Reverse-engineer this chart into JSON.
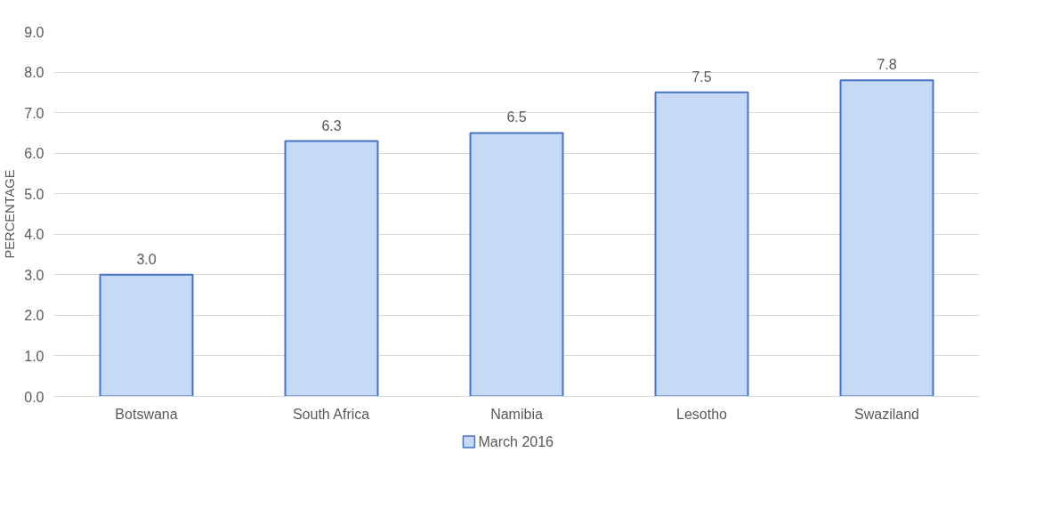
{
  "chart_data": {
    "type": "bar",
    "ylabel": "PERCENTAGE",
    "categories": [
      "Botswana",
      "South Africa",
      "Namibia",
      "Lesotho",
      "Swaziland"
    ],
    "series": [
      {
        "name": "March 2016",
        "color": "#c6d9f7",
        "values": [
          3.0,
          6.3,
          6.5,
          7.5,
          7.8
        ],
        "value_labels": [
          "3.0",
          "6.3",
          "6.5",
          "7.5",
          "7.8"
        ]
      }
    ],
    "ylim": [
      0,
      9
    ],
    "yticks": [
      {
        "value": 0,
        "label": "0.0"
      },
      {
        "value": 1,
        "label": "1.0"
      },
      {
        "value": 2,
        "label": "2.0"
      },
      {
        "value": 3,
        "label": "3.0"
      },
      {
        "value": 4,
        "label": "4.0"
      },
      {
        "value": 5,
        "label": "5.0"
      },
      {
        "value": 6,
        "label": "6.0"
      },
      {
        "value": 7,
        "label": "7.0"
      },
      {
        "value": 8,
        "label": "8.0"
      },
      {
        "value": 9,
        "label": "9.0"
      }
    ],
    "grid": "y",
    "legend": "bottom"
  }
}
